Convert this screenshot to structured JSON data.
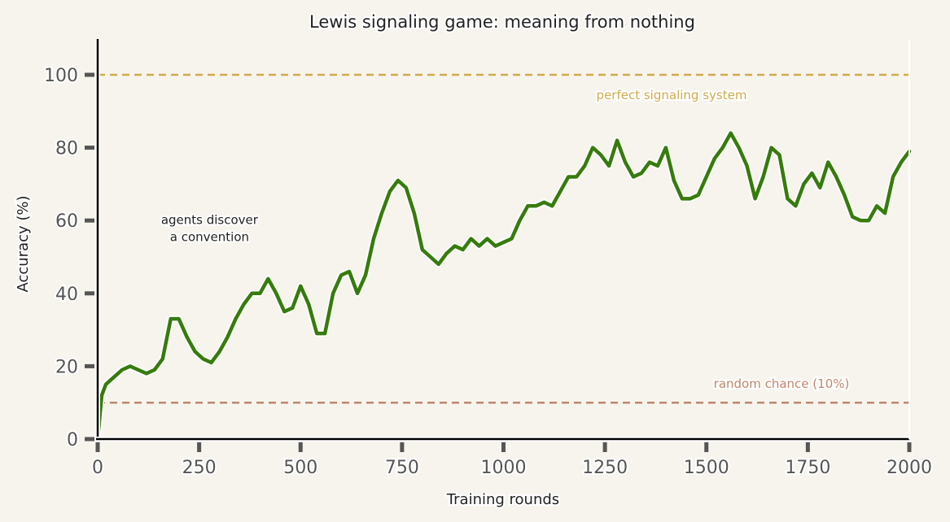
{
  "chart_data": {
    "type": "line",
    "title": "Lewis signaling game: meaning from nothing",
    "xlabel": "Training rounds",
    "ylabel": "Accuracy (%)",
    "xlim": [
      0,
      2000
    ],
    "ylim": [
      0,
      110
    ],
    "xticks": [
      0,
      250,
      500,
      750,
      1000,
      1250,
      1500,
      1750,
      2000
    ],
    "yticks": [
      0,
      20,
      40,
      60,
      80,
      100
    ],
    "grid": false,
    "series": [
      {
        "name": "accuracy",
        "color": "#367c0c",
        "x": [
          0,
          10,
          20,
          40,
          60,
          80,
          100,
          120,
          140,
          160,
          180,
          200,
          220,
          240,
          260,
          280,
          300,
          320,
          340,
          360,
          380,
          400,
          420,
          440,
          460,
          480,
          500,
          520,
          540,
          560,
          580,
          600,
          620,
          640,
          660,
          680,
          700,
          720,
          740,
          760,
          780,
          800,
          820,
          840,
          860,
          880,
          900,
          920,
          940,
          960,
          980,
          1000,
          1020,
          1040,
          1060,
          1080,
          1100,
          1120,
          1140,
          1160,
          1180,
          1200,
          1220,
          1240,
          1260,
          1280,
          1300,
          1320,
          1340,
          1360,
          1380,
          1400,
          1420,
          1440,
          1460,
          1480,
          1500,
          1520,
          1540,
          1560,
          1580,
          1600,
          1620,
          1640,
          1660,
          1680,
          1700,
          1720,
          1740,
          1760,
          1780,
          1800,
          1820,
          1840,
          1860,
          1880,
          1900,
          1920,
          1940,
          1960,
          1980,
          2000
        ],
        "y": [
          0,
          12,
          15,
          17,
          19,
          20,
          19,
          18,
          19,
          22,
          33,
          33,
          28,
          24,
          22,
          21,
          24,
          28,
          33,
          37,
          40,
          40,
          44,
          40,
          35,
          36,
          42,
          37,
          29,
          29,
          40,
          45,
          46,
          40,
          45,
          55,
          62,
          68,
          71,
          69,
          62,
          52,
          50,
          48,
          51,
          53,
          52,
          55,
          53,
          55,
          53,
          54,
          55,
          60,
          64,
          64,
          65,
          64,
          68,
          72,
          72,
          75,
          80,
          78,
          75,
          82,
          76,
          72,
          73,
          76,
          75,
          80,
          71,
          66,
          66,
          67,
          72,
          77,
          80,
          84,
          80,
          75,
          66,
          72,
          80,
          78,
          66,
          64,
          70,
          73,
          69,
          76,
          72,
          67,
          61,
          60,
          60,
          64,
          62,
          72,
          76,
          79
        ]
      }
    ],
    "reference_lines": [
      {
        "y": 100,
        "label": "perfect signaling system",
        "color": "#d1aa4c"
      },
      {
        "y": 10,
        "label": "random chance (10%)",
        "color": "#c0866c"
      }
    ],
    "annotations": [
      {
        "text_lines": [
          "agents discover",
          "a convention"
        ],
        "x": 400,
        "y": 59
      }
    ]
  }
}
